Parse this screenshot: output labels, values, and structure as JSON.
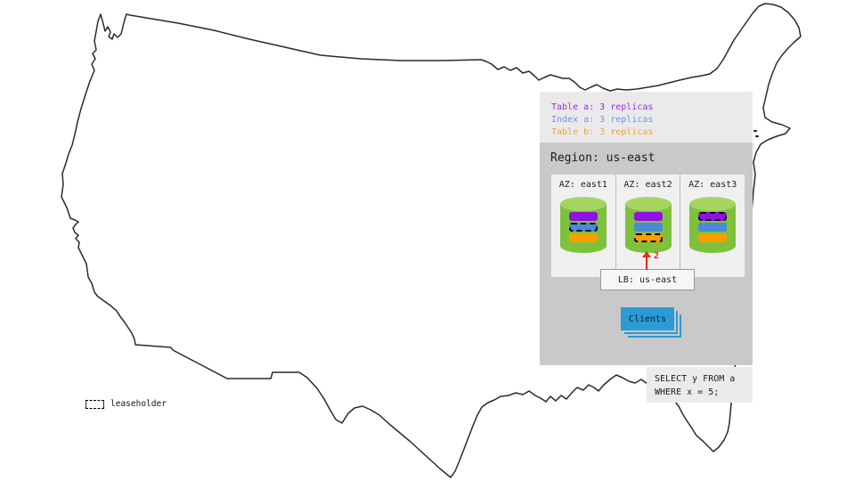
{
  "map_legend": {
    "swatch_icon": "dashed-box",
    "label": "leaseholder"
  },
  "panel": {
    "replica_legend": [
      {
        "label": "Table a: 3 replicas",
        "color": "#9a2fdb"
      },
      {
        "label": "Index a: 3 replicas",
        "color": "#6d95e8"
      },
      {
        "label": "Table b: 3 replicas",
        "color": "#f2a33c"
      }
    ],
    "region": {
      "title": "Region: us-east",
      "azs": [
        {
          "label": "AZ: east1",
          "replicas": [
            {
              "item": "table-a",
              "leaseholder": false
            },
            {
              "item": "index-a",
              "leaseholder": true
            },
            {
              "item": "table-b",
              "leaseholder": false
            }
          ]
        },
        {
          "label": "AZ: east2",
          "replicas": [
            {
              "item": "table-a",
              "leaseholder": false
            },
            {
              "item": "index-a",
              "leaseholder": false
            },
            {
              "item": "table-b",
              "leaseholder": true
            }
          ]
        },
        {
          "label": "AZ: east3",
          "replicas": [
            {
              "item": "table-a",
              "leaseholder": true
            },
            {
              "item": "index-a",
              "leaseholder": false
            },
            {
              "item": "table-b",
              "leaseholder": false
            }
          ]
        }
      ],
      "lb_label": "LB: us-east",
      "arrow_label": "2",
      "clients_label": "Clients"
    },
    "query_lines": [
      "SELECT y FROM a",
      "WHERE x = 5;"
    ]
  },
  "colors": {
    "table-a": "#8e12e0",
    "index-a": "#4a8ad8",
    "table-b": "#ff9c00",
    "arrow": "#e8281e",
    "cylinder_body": "#7ec13d",
    "cylinder_top": "#a5d561",
    "clients_blue": "#2b9ad5"
  }
}
